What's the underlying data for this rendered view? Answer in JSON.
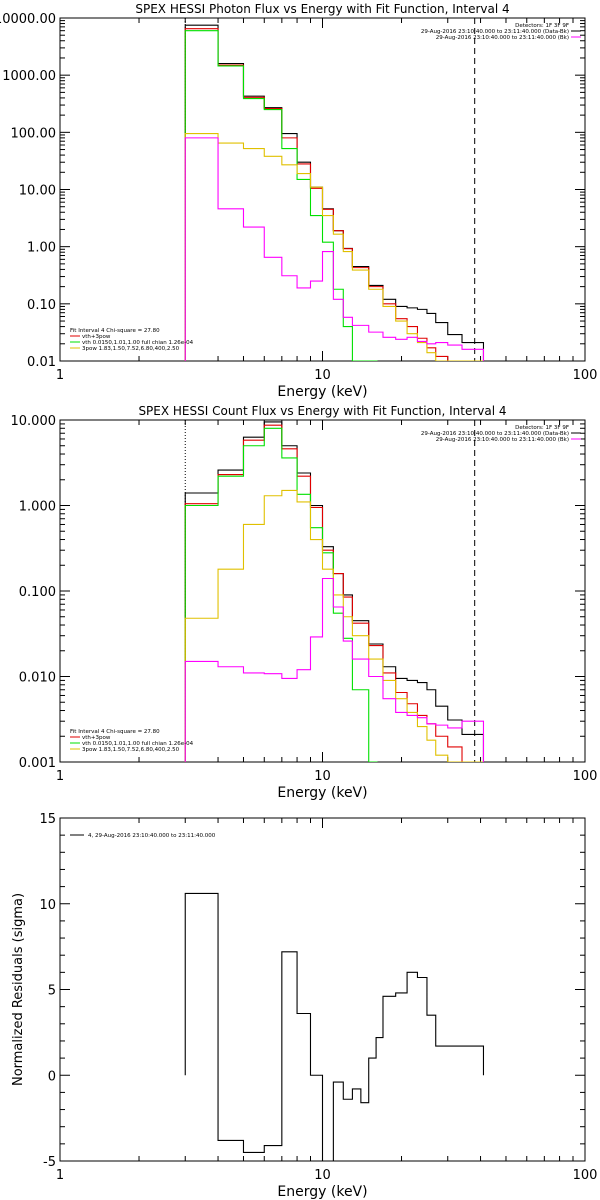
{
  "chart_data": [
    {
      "type": "line",
      "title": "SPEX HESSI Photon Flux vs Energy with Fit Function, Interval 4",
      "xlabel": "Energy (keV)",
      "ylabel": "",
      "xscale": "log",
      "yscale": "log",
      "xlim": [
        1,
        100
      ],
      "ylim": [
        0.01,
        10000
      ],
      "x_tick_labels": [
        "1",
        "10",
        "100"
      ],
      "y_tick_values": [
        0.01,
        0.1,
        1,
        10,
        100,
        1000,
        10000
      ],
      "y_tick_labels": [
        "0.01",
        "0.10",
        "1.00",
        "10.00",
        "100.00",
        "1000.00",
        "10000.00"
      ],
      "legend_top": [
        "Detectors: 1F 3F 9F",
        "29-Aug-2016 23:10:40.000 to 23:11:40.000 (Data-Bk)",
        "29-Aug-2016 23:10:40.000 to 23:11:40.000 (Bk)"
      ],
      "legend_bottom": [
        "Fit Interval 4   Chi-square = 27.80",
        "vth+3pow",
        "vth 0.0150,1.01,1.00  full chian 1.26e-04",
        "3pow 1.83,1.50,7.52,6.80,400,2.50"
      ],
      "legend_top_colors": [
        "#000000",
        "#ff00ff"
      ],
      "legend_bottom_colors": [
        "#e00000",
        "#00e000",
        "#e0c000"
      ],
      "dashed_line_x": 38,
      "dotted_line_x": 3,
      "series": [
        {
          "color": "#000000",
          "x": [
            3,
            4,
            5,
            6,
            7,
            8,
            9,
            10,
            11,
            12,
            13,
            15,
            17,
            19,
            21,
            23,
            25,
            27,
            30,
            34,
            38
          ],
          "y": [
            7500,
            1600,
            430,
            270,
            95,
            30,
            11,
            4.6,
            1.9,
            0.93,
            0.45,
            0.21,
            0.12,
            0.09,
            0.085,
            0.08,
            0.068,
            0.047,
            0.029,
            0.021,
            0.021
          ]
        },
        {
          "color": "#e00000",
          "x": [
            3,
            4,
            5,
            6,
            7,
            8,
            9,
            10,
            11,
            12,
            13,
            15,
            17,
            19,
            21,
            23,
            25,
            27,
            30,
            34,
            38
          ],
          "y": [
            6500,
            1500,
            410,
            260,
            80,
            28,
            10.5,
            4.5,
            1.9,
            0.92,
            0.43,
            0.2,
            0.1,
            0.055,
            0.04,
            0.025,
            0.017,
            0.012,
            0.01,
            0.01,
            0.01
          ]
        },
        {
          "color": "#00e000",
          "x": [
            3,
            4,
            5,
            6,
            7,
            8,
            9,
            10,
            11,
            12,
            13,
            15
          ],
          "y": [
            6000,
            1450,
            390,
            250,
            52,
            15,
            3.5,
            1.2,
            0.18,
            0.04,
            0.01,
            0.01
          ]
        },
        {
          "color": "#e0c000",
          "x": [
            3,
            4,
            5,
            6,
            7,
            8,
            9,
            10,
            11,
            12,
            13,
            15,
            17,
            19,
            21,
            23,
            25,
            27,
            30,
            34,
            38
          ],
          "y": [
            95,
            65,
            52,
            38,
            27,
            19,
            11,
            3.5,
            1.65,
            0.82,
            0.39,
            0.18,
            0.09,
            0.05,
            0.03,
            0.021,
            0.014,
            0.01,
            0.01,
            0.01,
            0.01
          ]
        },
        {
          "color": "#ff00ff",
          "x": [
            3,
            4,
            5,
            6,
            7,
            8,
            9,
            10,
            11,
            12,
            13,
            15,
            17,
            19,
            21,
            23,
            25,
            27,
            30,
            34,
            38
          ],
          "y": [
            80,
            4.6,
            2.2,
            0.65,
            0.31,
            0.19,
            0.25,
            0.82,
            0.12,
            0.058,
            0.042,
            0.032,
            0.026,
            0.024,
            0.026,
            0.022,
            0.02,
            0.021,
            0.019,
            0.016,
            0.016
          ]
        }
      ]
    },
    {
      "type": "line",
      "title": "SPEX HESSI Count Flux vs Energy with Fit Function, Interval 4",
      "xlabel": "Energy (keV)",
      "ylabel": "",
      "xscale": "log",
      "yscale": "log",
      "xlim": [
        1,
        100
      ],
      "ylim": [
        0.001,
        10
      ],
      "x_tick_labels": [
        "1",
        "10",
        "100"
      ],
      "y_tick_values": [
        0.001,
        0.01,
        0.1,
        1,
        10
      ],
      "y_tick_labels": [
        "0.001",
        "0.010",
        "0.100",
        "1.000",
        "10.000"
      ],
      "legend_top": [
        "Detectors: 1F 3F 9F",
        "29-Aug-2016 23:10:40.000 to 23:11:40.000 (Data-Bk)",
        "29-Aug-2016 23:10:40.000 to 23:11:40.000 (Bk)"
      ],
      "legend_bottom": [
        "Fit Interval 4   Chi-square = 27.80",
        "vth+3pow",
        "vth 0.0150,1.01,1.00  full chian 1.26e-04",
        "3pow 1.83,1.50,7.52,6.80,400,2.50"
      ],
      "legend_top_colors": [
        "#000000",
        "#ff00ff"
      ],
      "legend_bottom_colors": [
        "#e00000",
        "#00e000",
        "#e0c000"
      ],
      "dashed_line_x": 38,
      "dotted_line_x": 3,
      "series": [
        {
          "color": "#000000",
          "x": [
            3,
            4,
            5,
            6,
            7,
            8,
            9,
            10,
            11,
            12,
            13,
            15,
            17,
            19,
            21,
            23,
            25,
            27,
            30,
            34,
            38
          ],
          "y": [
            1.4,
            2.6,
            6.3,
            9.5,
            5.0,
            2.4,
            1.0,
            0.33,
            0.16,
            0.09,
            0.045,
            0.024,
            0.013,
            0.0095,
            0.009,
            0.0085,
            0.007,
            0.0045,
            0.0031,
            0.0021,
            0.0021
          ]
        },
        {
          "color": "#e00000",
          "x": [
            3,
            4,
            5,
            6,
            7,
            8,
            9,
            10,
            11,
            12,
            13,
            15,
            17,
            19,
            21,
            23,
            25,
            27,
            30,
            34,
            38
          ],
          "y": [
            1.05,
            2.3,
            5.8,
            8.7,
            4.6,
            2.2,
            0.95,
            0.3,
            0.16,
            0.085,
            0.042,
            0.023,
            0.011,
            0.0065,
            0.0048,
            0.0035,
            0.0028,
            0.002,
            0.0015,
            0.001,
            0.001
          ]
        },
        {
          "color": "#00e000",
          "x": [
            3,
            4,
            5,
            6,
            7,
            8,
            9,
            10,
            11,
            12,
            13,
            15
          ],
          "y": [
            1.0,
            2.2,
            5.0,
            8.0,
            3.6,
            1.35,
            0.55,
            0.28,
            0.055,
            0.028,
            0.007,
            0.001
          ]
        },
        {
          "color": "#e0c000",
          "x": [
            3,
            4,
            5,
            6,
            7,
            8,
            9,
            10,
            11,
            12,
            13,
            15,
            17,
            19,
            21,
            23,
            25,
            27,
            30,
            34,
            38
          ],
          "y": [
            0.048,
            0.18,
            0.6,
            1.3,
            1.5,
            1.1,
            0.4,
            0.18,
            0.09,
            0.05,
            0.03,
            0.016,
            0.009,
            0.0055,
            0.0038,
            0.0026,
            0.0018,
            0.0012,
            0.001,
            0.001,
            0.001
          ]
        },
        {
          "color": "#ff00ff",
          "x": [
            3,
            4,
            5,
            6,
            7,
            8,
            9,
            10,
            11,
            12,
            13,
            15,
            17,
            19,
            21,
            23,
            25,
            27,
            30,
            34,
            38
          ],
          "y": [
            0.015,
            0.013,
            0.011,
            0.0108,
            0.0095,
            0.012,
            0.029,
            0.14,
            0.065,
            0.026,
            0.016,
            0.01,
            0.0055,
            0.0038,
            0.0035,
            0.0033,
            0.0028,
            0.0027,
            0.0025,
            0.003,
            0.003
          ]
        }
      ]
    },
    {
      "type": "line",
      "title": "",
      "xlabel": "Energy (keV)",
      "ylabel": "Normalized Residuals (sigma)",
      "xscale": "log",
      "yscale": "linear",
      "xlim": [
        1,
        100
      ],
      "ylim": [
        -5,
        15
      ],
      "x_tick_labels": [
        "1",
        "10",
        "100"
      ],
      "y_tick_values": [
        -5,
        0,
        5,
        10,
        15
      ],
      "y_tick_labels": [
        "-5",
        "0",
        "5",
        "10",
        "15"
      ],
      "legend_top": [
        "4, 29-Aug-2016 23:10:40.000 to 23:11:40.000"
      ],
      "legend_top_colors": [
        "#000000"
      ],
      "series": [
        {
          "color": "#000000",
          "x": [
            3,
            4,
            5,
            6,
            7,
            8,
            9,
            10,
            11,
            12,
            13,
            14,
            15,
            16,
            17,
            19,
            21,
            23,
            25,
            27,
            30,
            34,
            38
          ],
          "y": [
            10.6,
            -3.8,
            -4.5,
            -4.1,
            7.2,
            3.6,
            0,
            -5.1,
            -0.4,
            -1.4,
            -0.8,
            -1.6,
            1.0,
            2.2,
            4.6,
            4.8,
            6.0,
            5.7,
            3.5,
            1.7,
            1.7,
            1.7,
            1.7
          ]
        }
      ]
    }
  ]
}
